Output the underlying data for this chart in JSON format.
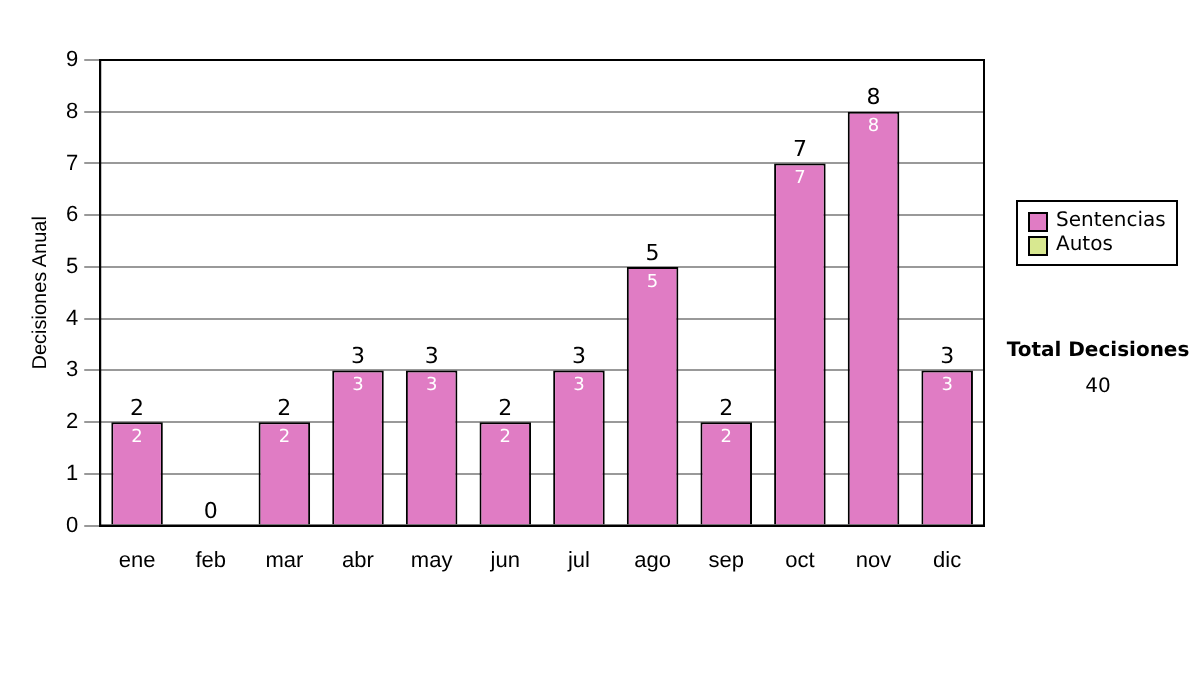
{
  "chart_data": {
    "type": "bar",
    "stacked": true,
    "ylabel": "Decisiones Anual",
    "categories": [
      "ene",
      "feb",
      "mar",
      "abr",
      "may",
      "jun",
      "jul",
      "ago",
      "sep",
      "oct",
      "nov",
      "dic"
    ],
    "series": [
      {
        "name": "Sentencias",
        "color": "#e07cc4",
        "values": [
          2,
          0,
          2,
          3,
          3,
          2,
          3,
          5,
          2,
          7,
          8,
          3
        ],
        "value_labels": [
          "2",
          null,
          "2",
          "3",
          "3",
          "2",
          "3",
          "5",
          "2",
          "7",
          "8",
          "3"
        ]
      },
      {
        "name": "Autos",
        "color": "#d8e890",
        "values": [
          0,
          0,
          0,
          0,
          0,
          0,
          0,
          0,
          0,
          0,
          0,
          0
        ]
      }
    ],
    "totals": [
      "2",
      "0",
      "2",
      "3",
      "3",
      "2",
      "3",
      "5",
      "2",
      "7",
      "8",
      "3"
    ],
    "ylim": [
      0,
      9
    ],
    "yticks": [
      0,
      1,
      2,
      3,
      4,
      5,
      6,
      7,
      8,
      9
    ],
    "grid": "y",
    "legend": "right",
    "annotations": [
      "Total Decisiones",
      "40"
    ]
  }
}
